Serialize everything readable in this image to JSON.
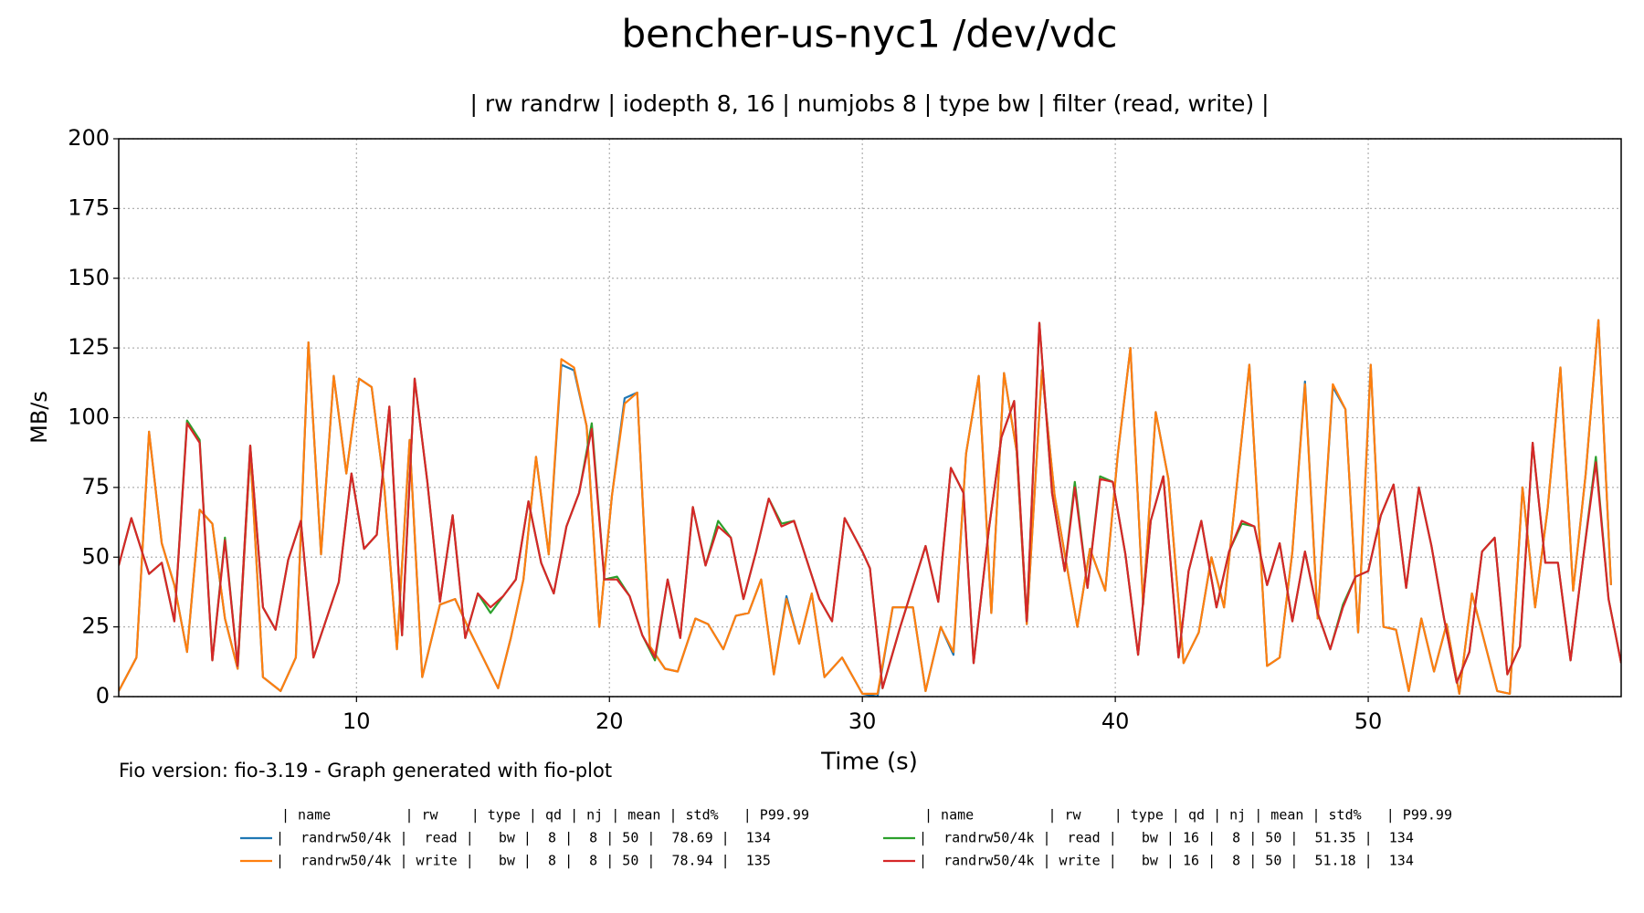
{
  "chart_data": {
    "type": "line",
    "title": "bencher-us-nyc1 /dev/vdc",
    "subtitle": "| rw randrw | iodepth 8, 16 | numjobs 8 | type bw | filter (read, write) |",
    "x_label": "Time (s)",
    "y_label": "MB/s",
    "footer": "Fio version: fio-3.19 - Graph generated with fio-plot",
    "legend_headers": [
      "| name         | rw    | type | qd | nj | mean | std%   | P99.99",
      "| name         | rw    | type | qd | nj | mean | std%   | P99.99"
    ],
    "xlim": [
      0.6,
      60.0
    ],
    "xticks": [
      10,
      20,
      30,
      40,
      50
    ],
    "ylim": [
      0,
      200
    ],
    "yticks": [
      0,
      25,
      50,
      75,
      100,
      125,
      150,
      175,
      200
    ],
    "grid": true,
    "series": [
      {
        "name": "|  randrw50/4k |  read |   bw |  8 |  8 | 50 |  78.69 |  134",
        "color": "#1f77b4",
        "x": [
          0.6,
          1.3,
          1.8,
          2.3,
          2.8,
          3.3,
          3.8,
          4.3,
          4.8,
          5.3,
          5.8,
          6.3,
          7.0,
          7.6,
          8.1,
          8.6,
          9.1,
          9.6,
          10.1,
          10.6,
          11.1,
          11.6,
          12.1,
          12.6,
          13.3,
          13.9,
          14.4,
          15.0,
          15.6,
          16.1,
          16.6,
          17.1,
          17.6,
          18.1,
          18.6,
          19.1,
          19.6,
          20.1,
          20.6,
          21.1,
          21.6,
          22.2,
          22.7,
          23.4,
          23.9,
          24.5,
          25.0,
          25.5,
          26.0,
          26.5,
          27.0,
          27.5,
          28.0,
          28.5,
          29.2,
          30.0,
          30.6,
          31.2,
          32.0,
          32.5,
          33.1,
          33.6,
          34.1,
          34.6,
          35.1,
          35.6,
          36.1,
          36.5,
          37.1,
          37.6,
          38.5,
          39.0,
          39.6,
          40.1,
          40.6,
          41.1,
          41.6,
          42.1,
          42.7,
          43.3,
          43.8,
          44.3,
          45.3,
          46.0,
          46.5,
          47.0,
          47.5,
          48.0,
          48.6,
          49.1,
          49.6,
          50.1,
          50.6,
          51.1,
          51.6,
          52.1,
          52.6,
          53.1,
          53.6,
          54.1,
          55.1,
          55.6,
          56.1,
          56.6,
          57.1,
          57.6,
          58.1,
          58.6,
          59.1,
          59.6
        ],
        "values": [
          2,
          14,
          95,
          55,
          40,
          16,
          67,
          62,
          28,
          10,
          88,
          7,
          2,
          14,
          127,
          51,
          115,
          80,
          114,
          111,
          75,
          17,
          92,
          7,
          33,
          35,
          25,
          14,
          3,
          21,
          42,
          86,
          51,
          119,
          117,
          97,
          25,
          72,
          107,
          109,
          18,
          10,
          9,
          28,
          26,
          17,
          29,
          30,
          42,
          8,
          36,
          19,
          37,
          7,
          14,
          1,
          0,
          32,
          32,
          2,
          25,
          15,
          87,
          115,
          30,
          116,
          88,
          26,
          117,
          72,
          25,
          53,
          38,
          87,
          125,
          33,
          102,
          78,
          12,
          23,
          50,
          32,
          119,
          11,
          14,
          52,
          113,
          28,
          111,
          103,
          23,
          119,
          25,
          24,
          2,
          28,
          9,
          26,
          1,
          37,
          2,
          1,
          75,
          32,
          68,
          118,
          38,
          80,
          135,
          40
        ]
      },
      {
        "name": "|  randrw50/4k | write |   bw |  8 |  8 | 50 |  78.94 |  135",
        "color": "#ff7f0e",
        "x": [
          0.6,
          1.3,
          1.8,
          2.3,
          2.8,
          3.3,
          3.8,
          4.3,
          4.8,
          5.3,
          5.8,
          6.3,
          7.0,
          7.6,
          8.1,
          8.6,
          9.1,
          9.6,
          10.1,
          10.6,
          11.1,
          11.6,
          12.1,
          12.6,
          13.3,
          13.9,
          14.4,
          15.0,
          15.6,
          16.1,
          16.6,
          17.1,
          17.6,
          18.1,
          18.6,
          19.1,
          19.6,
          20.1,
          20.6,
          21.1,
          21.6,
          22.2,
          22.7,
          23.4,
          23.9,
          24.5,
          25.0,
          25.5,
          26.0,
          26.5,
          27.0,
          27.5,
          28.0,
          28.5,
          29.2,
          30.0,
          30.6,
          31.2,
          32.0,
          32.5,
          33.1,
          33.6,
          34.1,
          34.6,
          35.1,
          35.6,
          36.1,
          36.5,
          37.1,
          37.6,
          38.5,
          39.0,
          39.6,
          40.1,
          40.6,
          41.1,
          41.6,
          42.1,
          42.7,
          43.3,
          43.8,
          44.3,
          45.3,
          46.0,
          46.5,
          47.0,
          47.5,
          48.0,
          48.6,
          49.1,
          49.6,
          50.1,
          50.6,
          51.1,
          51.6,
          52.1,
          52.6,
          53.1,
          53.6,
          54.1,
          55.1,
          55.6,
          56.1,
          56.6,
          57.1,
          57.6,
          58.1,
          58.6,
          59.1,
          59.6
        ],
        "values": [
          2,
          14,
          95,
          55,
          40,
          16,
          67,
          62,
          28,
          10,
          88,
          7,
          2,
          14,
          127,
          51,
          115,
          80,
          114,
          111,
          75,
          17,
          92,
          7,
          33,
          35,
          25,
          14,
          3,
          21,
          42,
          86,
          51,
          121,
          118,
          97,
          25,
          72,
          105,
          109,
          18,
          10,
          9,
          28,
          26,
          17,
          29,
          30,
          42,
          8,
          35,
          19,
          37,
          7,
          14,
          1,
          1,
          32,
          32,
          2,
          25,
          16,
          87,
          115,
          30,
          116,
          88,
          26,
          117,
          72,
          25,
          53,
          38,
          87,
          125,
          33,
          102,
          78,
          12,
          23,
          50,
          32,
          119,
          11,
          14,
          52,
          112,
          28,
          112,
          103,
          23,
          119,
          25,
          24,
          2,
          28,
          9,
          26,
          1,
          37,
          2,
          1,
          75,
          32,
          68,
          118,
          38,
          80,
          135,
          40
        ]
      },
      {
        "name": "|  randrw50/4k |  read |   bw | 16 |  8 | 50 |  51.35 |  134",
        "color": "#2ca02c",
        "x": [
          0.6,
          1.1,
          1.8,
          2.3,
          2.8,
          3.3,
          3.8,
          4.3,
          4.8,
          5.3,
          5.8,
          6.3,
          6.8,
          7.3,
          7.8,
          8.3,
          9.3,
          9.8,
          10.3,
          10.8,
          11.3,
          11.8,
          12.3,
          12.8,
          13.3,
          13.8,
          14.3,
          14.8,
          15.3,
          15.8,
          16.3,
          16.8,
          17.3,
          17.8,
          18.3,
          18.8,
          19.3,
          19.8,
          20.3,
          20.8,
          21.3,
          21.8,
          22.3,
          22.8,
          23.3,
          23.8,
          24.3,
          24.8,
          25.3,
          25.8,
          26.3,
          26.8,
          27.3,
          28.3,
          28.8,
          29.3,
          30.0,
          30.3,
          30.8,
          31.5,
          32.5,
          33.0,
          33.5,
          34.0,
          34.4,
          35.0,
          35.5,
          36.0,
          36.5,
          37.0,
          37.5,
          38.0,
          38.4,
          38.9,
          39.4,
          39.9,
          40.4,
          40.9,
          41.4,
          41.9,
          42.5,
          42.9,
          43.4,
          44.0,
          44.5,
          45.0,
          45.5,
          46.0,
          46.5,
          47.0,
          47.5,
          48.0,
          48.5,
          49.0,
          49.5,
          50.0,
          50.5,
          51.0,
          51.5,
          52.0,
          52.5,
          53.0,
          53.5,
          54.0,
          54.5,
          55.0,
          55.5,
          56.0,
          56.5,
          57.0,
          57.5,
          58.0,
          58.5,
          59.0,
          59.5,
          60.0
        ],
        "values": [
          47,
          64,
          44,
          48,
          27,
          99,
          92,
          13,
          57,
          11,
          90,
          32,
          24,
          49,
          63,
          14,
          41,
          80,
          53,
          58,
          104,
          22,
          114,
          77,
          34,
          65,
          21,
          37,
          30,
          36,
          42,
          70,
          48,
          37,
          61,
          73,
          98,
          42,
          43,
          36,
          22,
          13,
          42,
          21,
          68,
          47,
          63,
          57,
          35,
          52,
          71,
          62,
          63,
          35,
          27,
          64,
          52,
          46,
          3,
          25,
          54,
          34,
          82,
          73,
          12,
          60,
          93,
          106,
          27,
          134,
          73,
          45,
          77,
          39,
          79,
          77,
          51,
          15,
          63,
          79,
          14,
          45,
          63,
          32,
          52,
          62,
          61,
          40,
          55,
          27,
          52,
          30,
          17,
          33,
          43,
          45,
          65,
          76,
          39,
          75,
          54,
          28,
          5,
          16,
          52,
          57,
          8,
          18,
          91,
          48,
          48,
          13,
          50,
          86,
          35,
          12
        ]
      },
      {
        "name": "|  randrw50/4k | write |   bw | 16 |  8 | 50 |  51.18 |  134",
        "color": "#d62728",
        "x": [
          0.6,
          1.1,
          1.8,
          2.3,
          2.8,
          3.3,
          3.8,
          4.3,
          4.8,
          5.3,
          5.8,
          6.3,
          6.8,
          7.3,
          7.8,
          8.3,
          9.3,
          9.8,
          10.3,
          10.8,
          11.3,
          11.8,
          12.3,
          12.8,
          13.3,
          13.8,
          14.3,
          14.8,
          15.3,
          15.8,
          16.3,
          16.8,
          17.3,
          17.8,
          18.3,
          18.8,
          19.3,
          19.8,
          20.3,
          20.8,
          21.3,
          21.8,
          22.3,
          22.8,
          23.3,
          23.8,
          24.3,
          24.8,
          25.3,
          25.8,
          26.3,
          26.8,
          27.3,
          28.3,
          28.8,
          29.3,
          30.0,
          30.3,
          30.8,
          31.5,
          32.5,
          33.0,
          33.5,
          34.0,
          34.4,
          35.0,
          35.5,
          36.0,
          36.5,
          37.0,
          37.5,
          38.0,
          38.4,
          38.9,
          39.4,
          39.9,
          40.4,
          40.9,
          41.4,
          41.9,
          42.5,
          42.9,
          43.4,
          44.0,
          44.5,
          45.0,
          45.5,
          46.0,
          46.5,
          47.0,
          47.5,
          48.0,
          48.5,
          49.0,
          49.5,
          50.0,
          50.5,
          51.0,
          51.5,
          52.0,
          52.5,
          53.0,
          53.5,
          54.0,
          54.5,
          55.0,
          55.5,
          56.0,
          56.5,
          57.0,
          57.5,
          58.0,
          58.5,
          59.0,
          59.5,
          60.0
        ],
        "values": [
          47,
          64,
          44,
          48,
          27,
          98,
          91,
          13,
          56,
          11,
          90,
          32,
          24,
          49,
          63,
          14,
          41,
          80,
          53,
          58,
          104,
          22,
          114,
          77,
          34,
          65,
          21,
          37,
          32,
          36,
          42,
          70,
          48,
          37,
          61,
          73,
          96,
          42,
          42,
          36,
          22,
          14,
          42,
          21,
          68,
          47,
          61,
          57,
          35,
          52,
          71,
          61,
          63,
          35,
          27,
          64,
          52,
          46,
          3,
          25,
          54,
          34,
          82,
          73,
          12,
          60,
          93,
          106,
          27,
          134,
          73,
          45,
          75,
          39,
          78,
          77,
          51,
          15,
          63,
          79,
          14,
          45,
          63,
          32,
          52,
          63,
          61,
          40,
          55,
          27,
          52,
          30,
          17,
          32,
          43,
          45,
          65,
          76,
          39,
          75,
          54,
          28,
          5,
          16,
          52,
          57,
          8,
          18,
          91,
          48,
          48,
          13,
          50,
          84,
          35,
          12
        ]
      }
    ]
  }
}
